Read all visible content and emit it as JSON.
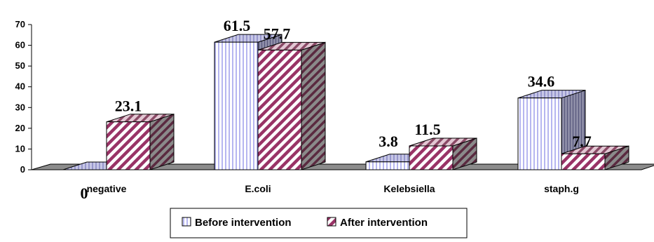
{
  "chart_data": {
    "type": "bar",
    "title": "",
    "xlabel": "",
    "ylabel": "",
    "ylim": [
      0,
      70
    ],
    "yticks": [
      0,
      10,
      20,
      30,
      40,
      50,
      60,
      70
    ],
    "categories": [
      "negative",
      "E.coli",
      "Kelebsiella",
      "staph.g"
    ],
    "series": [
      {
        "name": "Before intervention",
        "values": [
          0,
          61.5,
          3.8,
          34.6
        ],
        "labels": [
          "0",
          "61.5",
          "3.8",
          "34.6"
        ],
        "pattern": "vertical-lines",
        "color": "#9999ff"
      },
      {
        "name": "After intervention",
        "values": [
          23.1,
          57.7,
          11.5,
          7.7
        ],
        "labels": [
          "23.1",
          "57.7",
          "11.5",
          "7.7"
        ],
        "pattern": "diagonal-stripes",
        "color": "#993366"
      }
    ],
    "legend": "bottom-center",
    "grid": false,
    "style": "3d-clustered-column"
  }
}
